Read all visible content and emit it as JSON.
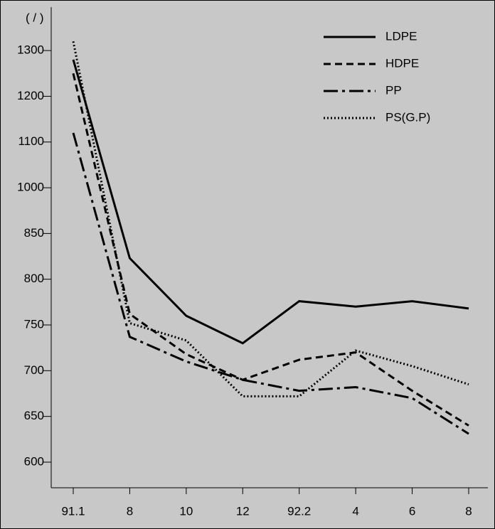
{
  "chart_data": {
    "type": "line",
    "y_label": "(      /   )",
    "categories": [
      "91.1",
      "8",
      "10",
      "12",
      "92.2",
      "4",
      "6",
      "8"
    ],
    "series": [
      {
        "name": "LDPE",
        "color": "#000000",
        "style": "solid",
        "values": [
          1280,
          823,
          760,
          730,
          776,
          770,
          776,
          768
        ]
      },
      {
        "name": "HDPE",
        "color": "#000000",
        "style": "dashed",
        "values": [
          1250,
          762,
          718,
          690,
          712,
          720,
          678,
          640
        ]
      },
      {
        "name": "PP",
        "color": "#000000",
        "style": "dashdot",
        "values": [
          1120,
          737,
          710,
          690,
          678,
          682,
          670,
          631
        ]
      },
      {
        "name": "PS(G.P)",
        "color": "#000000",
        "style": "dotted",
        "values": [
          1320,
          752,
          733,
          672,
          672,
          722,
          705,
          685
        ]
      }
    ],
    "ylim": [
      572,
      1395
    ],
    "yticks": [
      600,
      650,
      700,
      750,
      800,
      850,
      1000,
      1100,
      1200,
      1300
    ],
    "ytick_spacing": "even",
    "legend": "upper right",
    "background": "#c8c8c8"
  }
}
